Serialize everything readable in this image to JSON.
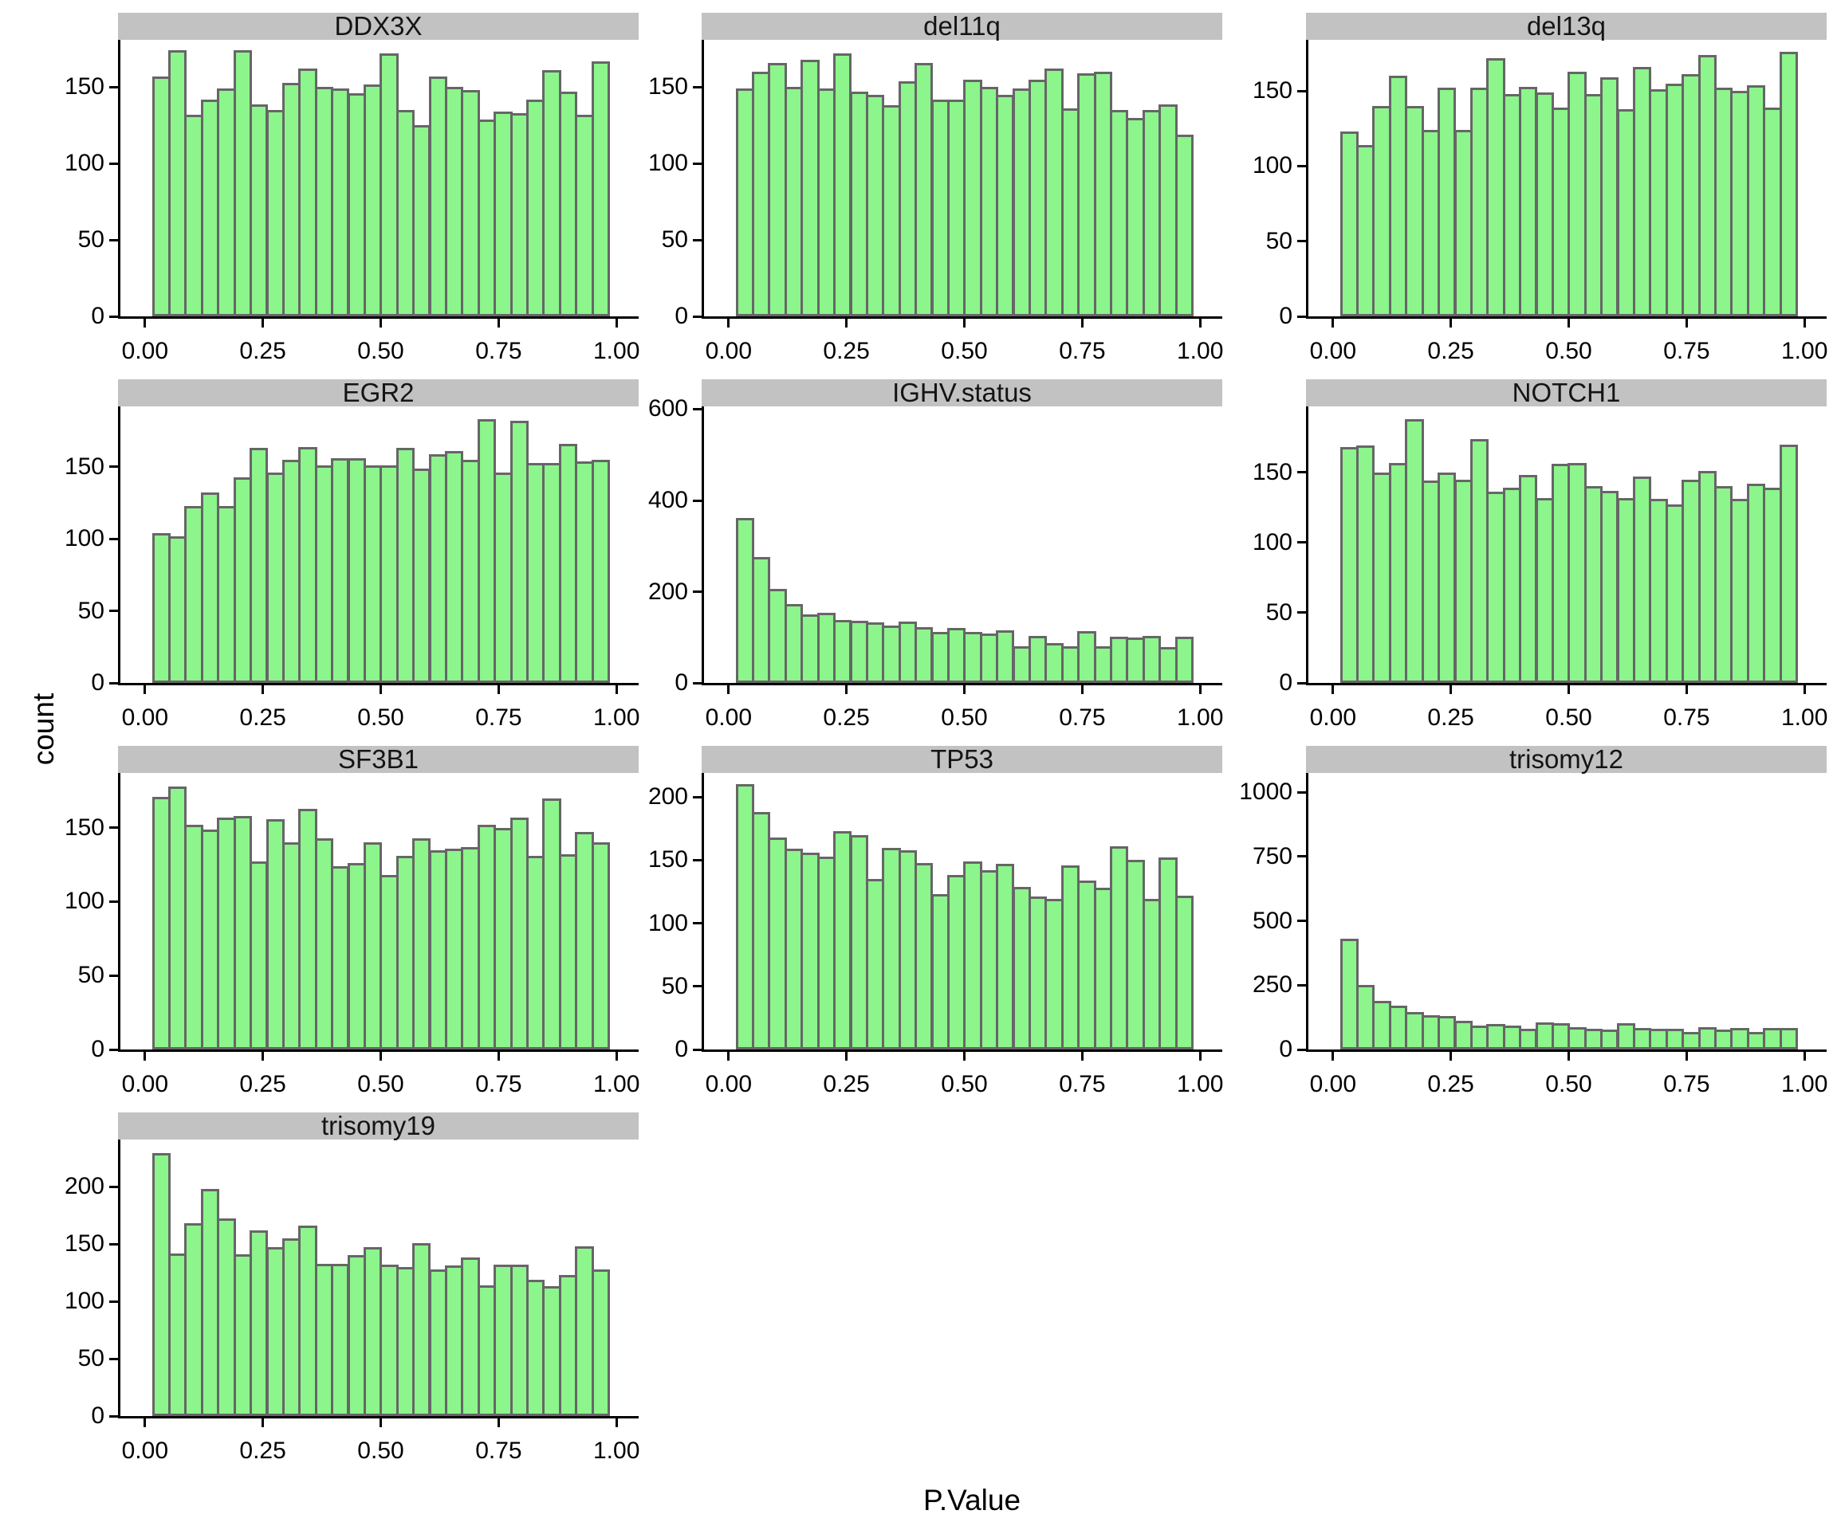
{
  "figure": {
    "x_axis_label": "P.Value",
    "y_axis_label": "count",
    "colors": {
      "bar_fill": "#8cf58c",
      "bar_stroke": "#666666",
      "strip_background": "#c2c2c2",
      "axis_line": "#000000",
      "text": "#000000"
    }
  },
  "chart_data": {
    "type": "bar",
    "subtype": "faceted-histogram",
    "xlabel": "P.Value",
    "ylabel": "count",
    "grid": "off",
    "legend": "none",
    "bins": 28,
    "bin_start": 0.015,
    "bin_width": 0.0345,
    "x_ticks": {
      "values": [
        0,
        0.25,
        0.5,
        0.75,
        1.0
      ],
      "labels": [
        "0.00",
        "0.25",
        "0.50",
        "0.75",
        "1.00"
      ]
    },
    "facets": [
      {
        "title": "DDX3X",
        "y_ticks": [
          0,
          50,
          100,
          150
        ],
        "ylim": [
          0,
          181
        ],
        "values": [
          157,
          174,
          132,
          142,
          149,
          174,
          139,
          135,
          153,
          162,
          150,
          149,
          146,
          152,
          172,
          135,
          125,
          157,
          150,
          148,
          129,
          134,
          133,
          142,
          161,
          147,
          132,
          167
        ]
      },
      {
        "title": "del11q",
        "y_ticks": [
          0,
          50,
          100,
          150
        ],
        "ylim": [
          0,
          181
        ],
        "values": [
          149,
          160,
          166,
          150,
          168,
          149,
          172,
          147,
          145,
          138,
          154,
          166,
          142,
          142,
          155,
          150,
          145,
          149,
          155,
          162,
          136,
          159,
          160,
          135,
          130,
          135,
          139,
          119
        ]
      },
      {
        "title": "del13q",
        "y_ticks": [
          0,
          50,
          100,
          150
        ],
        "ylim": [
          0,
          184
        ],
        "values": [
          123,
          114,
          140,
          160,
          140,
          124,
          152,
          124,
          152,
          172,
          148,
          153,
          149,
          139,
          163,
          148,
          159,
          138,
          166,
          151,
          155,
          161,
          174,
          152,
          150,
          154,
          139,
          176
        ]
      },
      {
        "title": "EGR2",
        "y_ticks": [
          0,
          50,
          100,
          150
        ],
        "ylim": [
          0,
          192
        ],
        "values": [
          104,
          102,
          123,
          132,
          123,
          143,
          163,
          146,
          155,
          164,
          151,
          156,
          156,
          151,
          151,
          163,
          149,
          159,
          161,
          155,
          183,
          146,
          182,
          153,
          153,
          166,
          154,
          155
        ]
      },
      {
        "title": "IGHV.status",
        "y_ticks": [
          0,
          200,
          400,
          600
        ],
        "ylim": [
          0,
          606
        ],
        "values": [
          362,
          276,
          207,
          173,
          150,
          153,
          138,
          137,
          132,
          125,
          135,
          122,
          112,
          120,
          112,
          109,
          115,
          80,
          103,
          88,
          81,
          113,
          81,
          101,
          100,
          103,
          78,
          101
        ]
      },
      {
        "title": "NOTCH1",
        "y_ticks": [
          0,
          50,
          100,
          150
        ],
        "ylim": [
          0,
          197
        ],
        "values": [
          168,
          169,
          150,
          157,
          188,
          144,
          150,
          145,
          174,
          136,
          139,
          148,
          132,
          156,
          157,
          140,
          137,
          132,
          147,
          131,
          127,
          145,
          151,
          140,
          131,
          142,
          139,
          170
        ]
      },
      {
        "title": "SF3B1",
        "y_ticks": [
          0,
          50,
          100,
          150
        ],
        "ylim": [
          0,
          187
        ],
        "values": [
          171,
          178,
          152,
          149,
          157,
          158,
          127,
          156,
          140,
          163,
          143,
          124,
          126,
          140,
          118,
          131,
          143,
          135,
          136,
          137,
          152,
          150,
          157,
          131,
          170,
          132,
          147,
          140
        ]
      },
      {
        "title": "TP53",
        "y_ticks": [
          0,
          50,
          100,
          150,
          200
        ],
        "ylim": [
          0,
          219
        ],
        "values": [
          210,
          188,
          168,
          159,
          156,
          153,
          173,
          170,
          135,
          160,
          158,
          148,
          123,
          138,
          149,
          142,
          147,
          129,
          121,
          119,
          146,
          134,
          128,
          161,
          150,
          119,
          152,
          122
        ]
      },
      {
        "title": "trisomy12",
        "y_ticks": [
          0,
          250,
          500,
          750,
          1000
        ],
        "ylim": [
          0,
          1075
        ],
        "values": [
          432,
          252,
          188,
          170,
          147,
          132,
          129,
          113,
          93,
          98,
          93,
          82,
          106,
          101,
          87,
          80,
          77,
          103,
          85,
          82,
          82,
          67,
          87,
          77,
          85,
          67,
          83,
          85
        ]
      },
      {
        "title": "trisomy19",
        "y_ticks": [
          0,
          50,
          100,
          150,
          200
        ],
        "ylim": [
          0,
          241
        ],
        "values": [
          229,
          142,
          168,
          198,
          172,
          141,
          162,
          147,
          155,
          166,
          133,
          133,
          140,
          147,
          132,
          130,
          151,
          128,
          131,
          138,
          114,
          132,
          132,
          119,
          113,
          123,
          148,
          128
        ]
      }
    ]
  }
}
